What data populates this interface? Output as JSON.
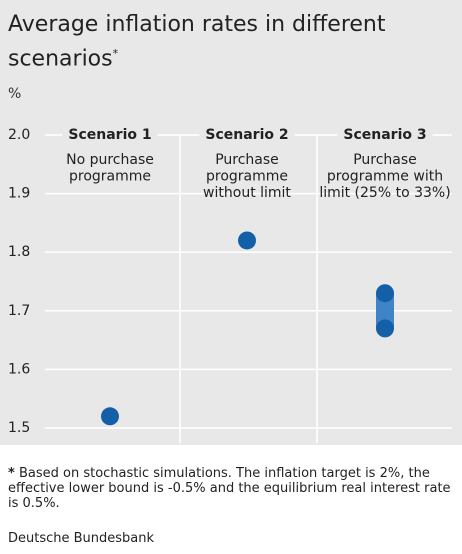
{
  "chart_data": {
    "type": "dot",
    "title": "Average inflation rates in different scenarios",
    "title_marker": "*",
    "unit": "%",
    "categories": [
      "Scenario 1",
      "Scenario 2",
      "Scenario 3"
    ],
    "descriptions": [
      [
        "No purchase",
        "programme"
      ],
      [
        "Purchase",
        "programme",
        "without limit"
      ],
      [
        "Purchase",
        "programme with",
        "limit (25% to 33%)"
      ]
    ],
    "values": [
      1.52,
      1.82,
      null
    ],
    "ranges": [
      null,
      null,
      [
        1.67,
        1.73
      ]
    ],
    "color": "#1460a8",
    "range_color": "#3f84c6",
    "ylim": [
      1.5,
      2.0
    ],
    "yticks": [
      1.5,
      1.6,
      1.7,
      1.8,
      1.9,
      {
        "value": 2,
        "label": "2.0"
      }
    ],
    "grid": true,
    "footnote_marker": "*",
    "footnote": "Based on stochastic simulations. The inflation target is 2%, the effective lower bound is -0.5% and the equilibrium real interest rate is 0.5%.",
    "source": "Deutsche Bundesbank"
  }
}
